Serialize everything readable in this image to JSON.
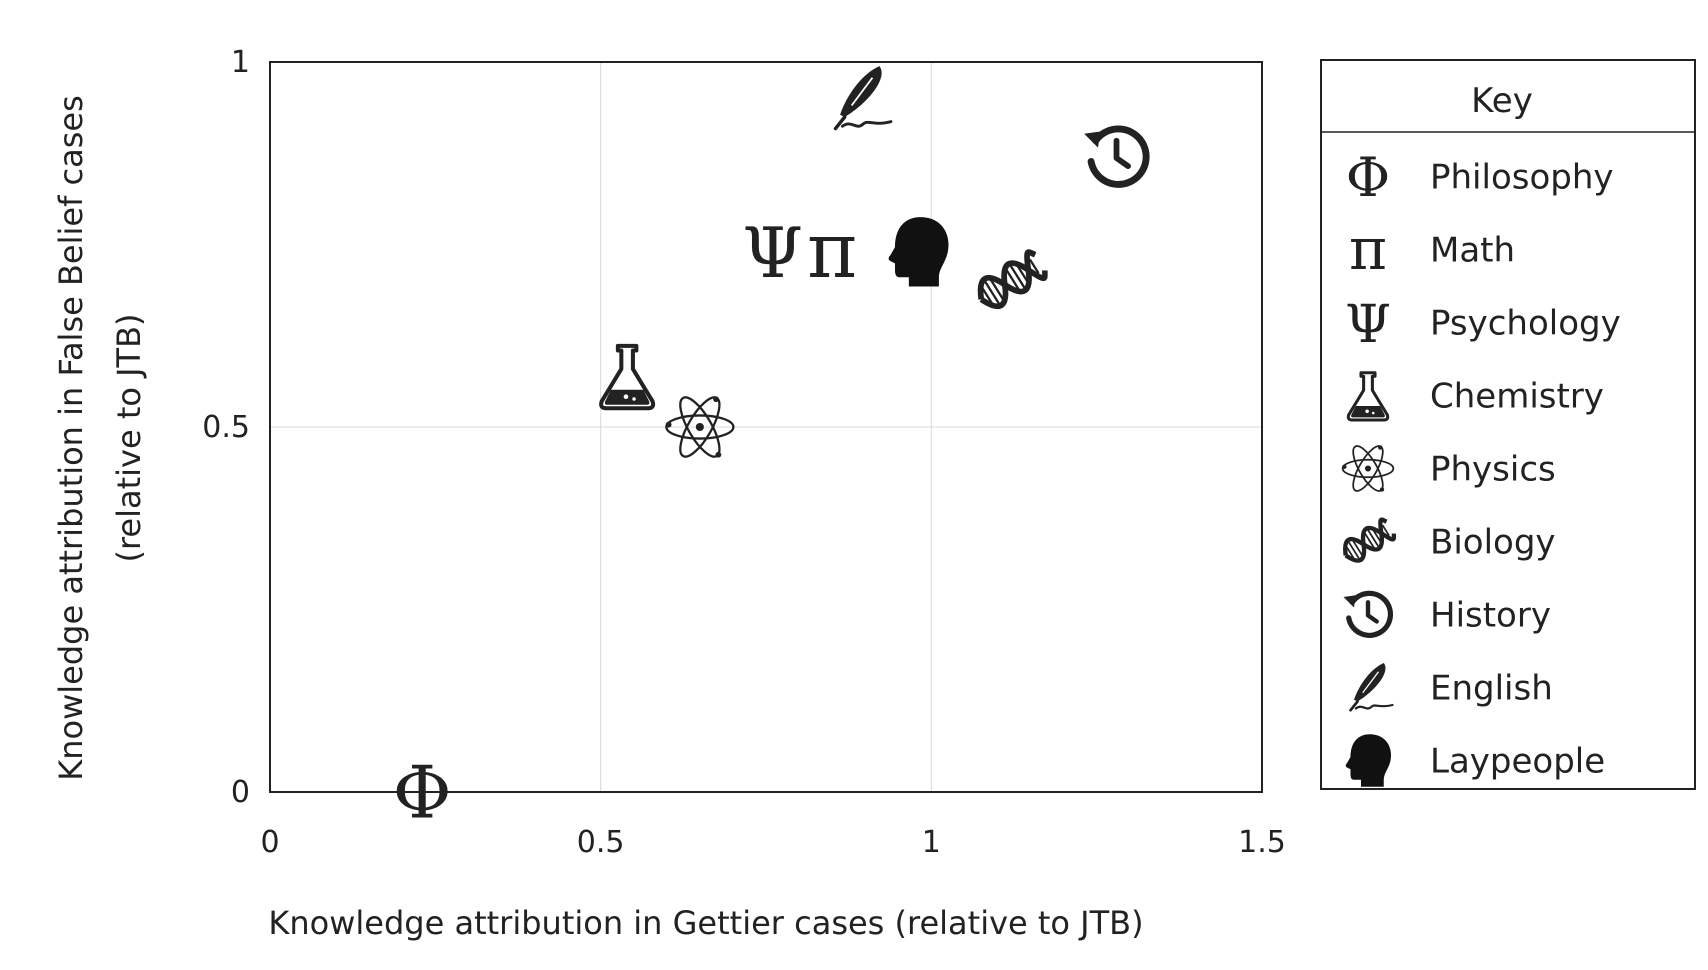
{
  "chart_data": {
    "type": "scatter",
    "xlabel": "Knowledge attribution in Gettier cases (relative to JTB)",
    "ylabel": [
      "Knowledge attribution in False Belief cases",
      "(relative to JTB)"
    ],
    "xlim": [
      0,
      1.5
    ],
    "ylim": [
      0,
      1
    ],
    "xticks": [
      "0",
      "0.5",
      "1",
      "1.5"
    ],
    "yticks": [
      "0",
      "0.5",
      "1"
    ],
    "grid": true,
    "legend_title": "Key",
    "legend_position": "right",
    "points": [
      {
        "name": "Philosophy",
        "icon": "phi-icon",
        "x": 0.23,
        "y": 0.0
      },
      {
        "name": "Math",
        "icon": "pi-icon",
        "x": 0.85,
        "y": 0.74
      },
      {
        "name": "Psychology",
        "icon": "psi-icon",
        "x": 0.76,
        "y": 0.74
      },
      {
        "name": "Chemistry",
        "icon": "flask-icon",
        "x": 0.54,
        "y": 0.57
      },
      {
        "name": "Physics",
        "icon": "atom-icon",
        "x": 0.65,
        "y": 0.5
      },
      {
        "name": "Biology",
        "icon": "dna-icon",
        "x": 1.12,
        "y": 0.7
      },
      {
        "name": "History",
        "icon": "history-icon",
        "x": 1.28,
        "y": 0.87
      },
      {
        "name": "English",
        "icon": "quill-icon",
        "x": 0.89,
        "y": 0.95
      },
      {
        "name": "Laypeople",
        "icon": "head-icon",
        "x": 0.98,
        "y": 0.74
      }
    ]
  }
}
